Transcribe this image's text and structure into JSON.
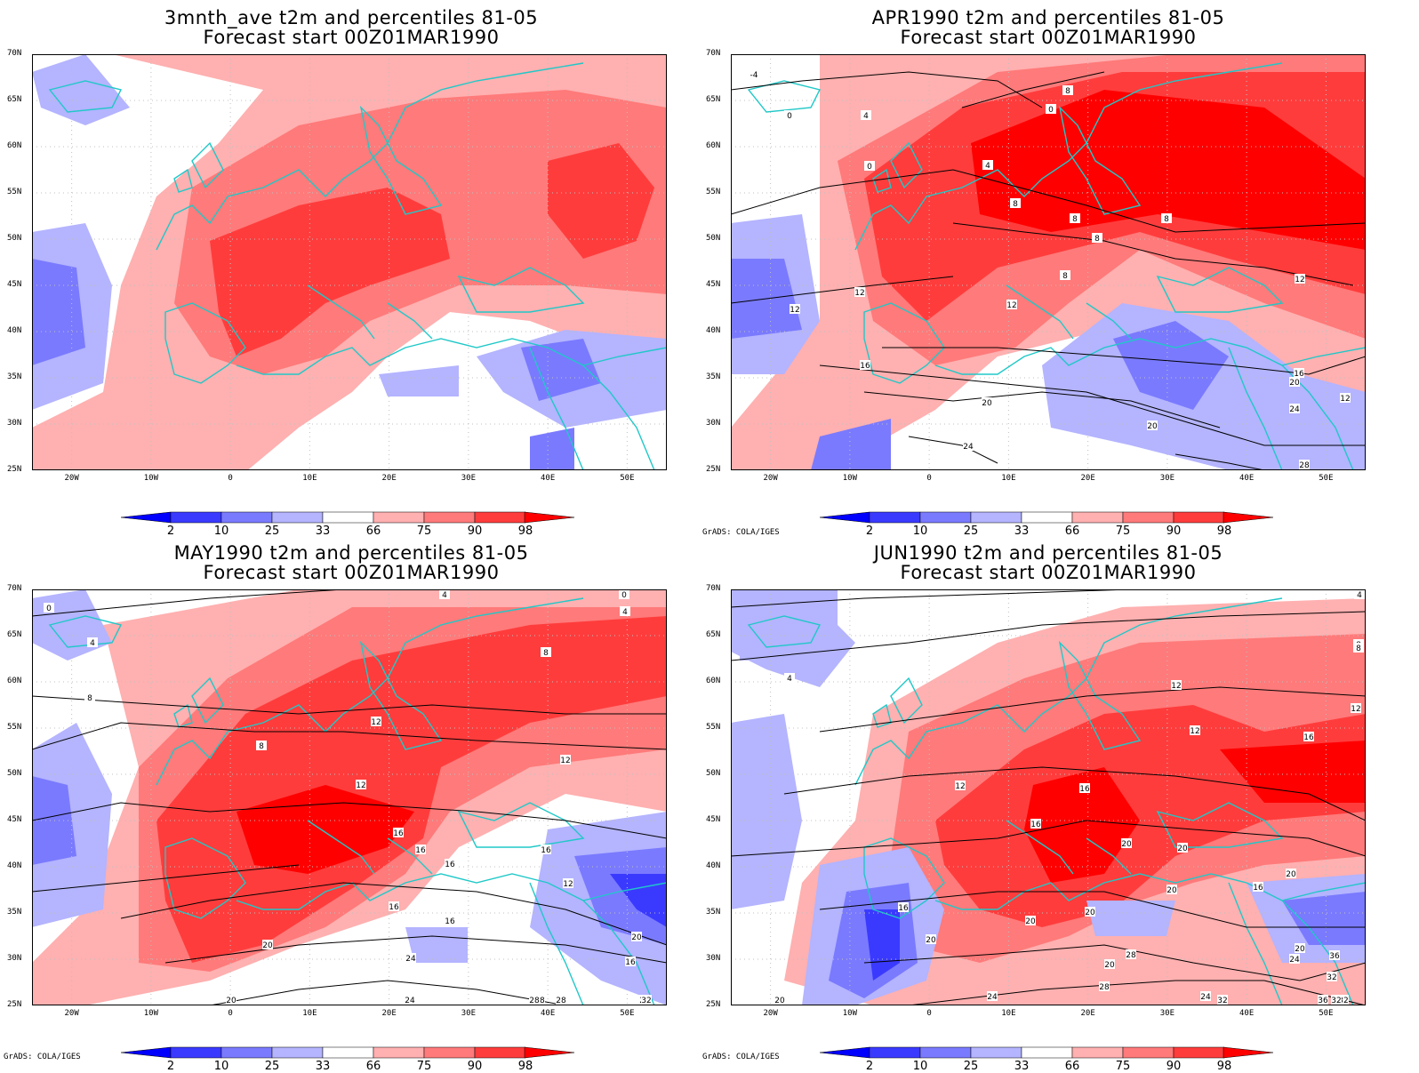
{
  "credit_text": "GrADS: COLA/IGES",
  "lat_labels": [
    "70N",
    "65N",
    "60N",
    "55N",
    "50N",
    "45N",
    "40N",
    "35N",
    "30N",
    "25N"
  ],
  "lon_labels": [
    "20W",
    "10W",
    "0",
    "10E",
    "20E",
    "30E",
    "40E",
    "50E"
  ],
  "colorbar": {
    "labels": [
      "2",
      "10",
      "25",
      "33",
      "66",
      "75",
      "90",
      "98"
    ],
    "colors": [
      "#0000ff",
      "#3a3aff",
      "#7a7aff",
      "#b4b4ff",
      "#ffffff",
      "#ffb0b0",
      "#ff7a7a",
      "#ff3c3c",
      "#ff0000"
    ]
  },
  "colors": {
    "coast": "#20c8c8",
    "contour": "#000000",
    "grid": "#c0c0c0"
  },
  "panels": [
    {
      "title": "3mnth_ave t2m and percentiles 81-05",
      "subtitle": "Forecast start 00Z01MAR1990",
      "show_credit": false,
      "contour_labels": []
    },
    {
      "title": "APR1990 t2m and percentiles 81-05",
      "subtitle": "Forecast start 00Z01MAR1990",
      "show_credit": true,
      "contour_labels": [
        "-4",
        "0",
        "4",
        "0",
        "4",
        "0",
        "8",
        "8",
        "8",
        "8",
        "12",
        "12",
        "12",
        "8",
        "8",
        "16",
        "12",
        "20",
        "16",
        "20",
        "12",
        "24",
        "20",
        "24",
        "28"
      ]
    },
    {
      "title": "MAY1990 t2m and percentiles 81-05",
      "subtitle": "Forecast start 00Z01MAR1990",
      "show_credit": true,
      "contour_labels": [
        "0",
        "4",
        "4",
        "0",
        "4",
        "8",
        "8",
        "8",
        "12",
        "12",
        "12",
        "16",
        "16",
        "16",
        "16",
        "12",
        "16",
        "20",
        "16",
        "24",
        "20",
        "16",
        "20",
        "24",
        "28",
        "28",
        "28",
        "32",
        "28"
      ]
    },
    {
      "title": "JUN1990 t2m and percentiles 81-05",
      "subtitle": "Forecast start 00Z01MAR1990",
      "show_credit": true,
      "contour_labels": [
        "4",
        "8",
        "4",
        "8",
        "12",
        "12",
        "12",
        "16",
        "12",
        "16",
        "16",
        "20",
        "20",
        "20",
        "16",
        "20",
        "20",
        "20",
        "16",
        "20",
        "24",
        "20",
        "28",
        "24",
        "28",
        "20",
        "24",
        "36",
        "32",
        "32",
        "32",
        "36",
        "32",
        "20"
      ]
    }
  ]
}
